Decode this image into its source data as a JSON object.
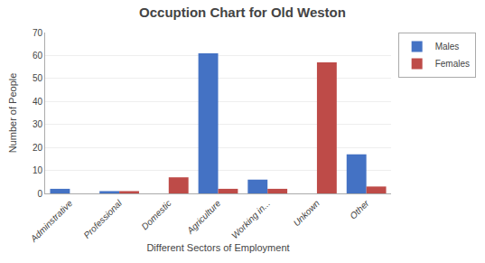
{
  "chart_data": {
    "type": "bar",
    "title": "Occuption Chart for Old Weston",
    "xlabel": "Different Sectors of Employment",
    "ylabel": "Number of People",
    "categories": [
      "Adminstrative",
      "Professional",
      "Domestic",
      "Agriculture",
      "Working in...",
      "Unkown",
      "Other"
    ],
    "series": [
      {
        "name": "Males",
        "color": "#4472C4",
        "values": [
          2,
          1,
          0,
          61,
          6,
          0,
          17
        ]
      },
      {
        "name": "Females",
        "color": "#BE4B48",
        "values": [
          0,
          1,
          7,
          2,
          2,
          57,
          3
        ]
      }
    ],
    "ylim": [
      0,
      70
    ],
    "yticks": [
      0,
      10,
      20,
      30,
      40,
      50,
      60,
      70
    ],
    "grid": true,
    "legend": "upper right"
  }
}
